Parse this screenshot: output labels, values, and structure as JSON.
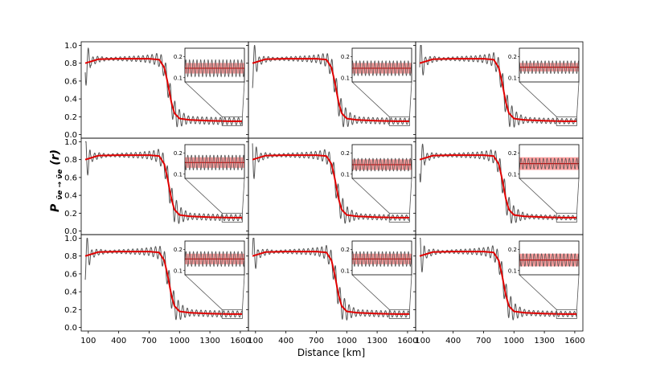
{
  "chart_data": {
    "type": "line",
    "layout": "3x3 grid of panels with shared axes",
    "xlabel": "Distance [km]",
    "ylabel": {
      "base": "P",
      "subscript": "ν̄e → ν̄e",
      "suffix": "(r)"
    },
    "xlim": [
      30,
      1680
    ],
    "ylim": [
      -0.04,
      1.04
    ],
    "x_ticks": [
      100,
      400,
      700,
      1000,
      1300,
      1600
    ],
    "y_ticks": [
      "0.0",
      "0.2",
      "0.4",
      "0.6",
      "0.8",
      "1.0"
    ],
    "colors": {
      "oscillating": "#555555",
      "averaged": "#e00000",
      "band": "#ff7f7f"
    },
    "series_description": [
      {
        "role": "oscillating survival probability",
        "color": "#555555"
      },
      {
        "role": "averaged survival probability",
        "color": "#e00000"
      }
    ],
    "profile": {
      "x_start": 70,
      "x_end": 1620,
      "high_value": 0.84,
      "low_value": 0.15,
      "transition_center_km": 900,
      "points_x": [
        70,
        200,
        400,
        600,
        700,
        800,
        850,
        880,
        900,
        920,
        950,
        1000,
        1100,
        1300,
        1500,
        1620
      ],
      "points_y": [
        0.8,
        0.845,
        0.85,
        0.85,
        0.85,
        0.84,
        0.75,
        0.6,
        0.48,
        0.36,
        0.24,
        0.18,
        0.165,
        0.155,
        0.15,
        0.15
      ]
    },
    "inset": {
      "ylim": [
        0.08,
        0.24
      ],
      "y_ticks": [
        "0.1",
        "0.2"
      ],
      "zoom_x_range": [
        1420,
        1620
      ],
      "zoom_y_range": [
        0.1,
        0.2
      ]
    },
    "panels": [
      {
        "row": 0,
        "col": 0,
        "band": [
          0.12,
          0.17
        ],
        "osc_amp": 0.04
      },
      {
        "row": 0,
        "col": 1,
        "band": [
          0.12,
          0.17
        ],
        "osc_amp": 0.035
      },
      {
        "row": 0,
        "col": 2,
        "band": [
          0.13,
          0.17
        ],
        "osc_amp": 0.03
      },
      {
        "row": 1,
        "col": 0,
        "band": [
          0.13,
          0.18
        ],
        "osc_amp": 0.035
      },
      {
        "row": 1,
        "col": 1,
        "band": [
          0.12,
          0.17
        ],
        "osc_amp": 0.03
      },
      {
        "row": 1,
        "col": 2,
        "band": [
          0.12,
          0.18
        ],
        "osc_amp": 0.025
      },
      {
        "row": 2,
        "col": 0,
        "band": [
          0.13,
          0.18
        ],
        "osc_amp": 0.035
      },
      {
        "row": 2,
        "col": 1,
        "band": [
          0.13,
          0.18
        ],
        "osc_amp": 0.035
      },
      {
        "row": 2,
        "col": 2,
        "band": [
          0.12,
          0.18
        ],
        "osc_amp": 0.03
      }
    ]
  }
}
